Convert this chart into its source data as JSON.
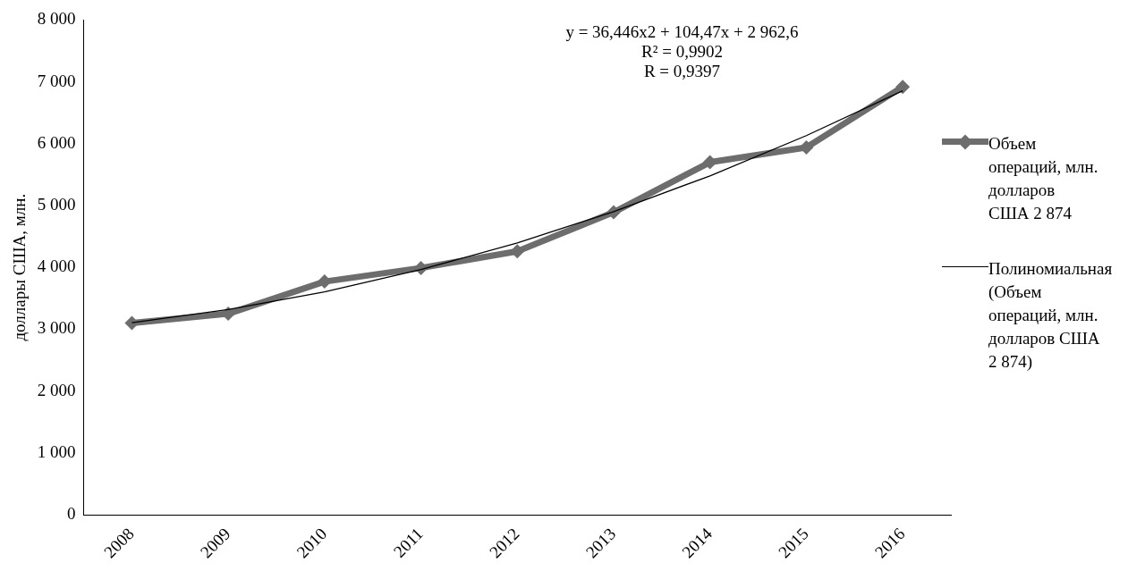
{
  "chart_data": {
    "type": "line",
    "ylabel": "доллары США, млн.",
    "categories": [
      "2008",
      "2009",
      "2010",
      "2011",
      "2012",
      "2013",
      "2014",
      "2015",
      "2016"
    ],
    "series": [
      {
        "name": "Объем операций, млн. долларов США 2 874",
        "color": "#6d6d6d",
        "values": [
          3100,
          3250,
          3770,
          3990,
          4260,
          4890,
          5700,
          5940,
          6920
        ]
      },
      {
        "name": "Полиномиальная (Объем операций, млн. долларов США 2 874)",
        "color": "#000000",
        "type": "line",
        "marker": "none",
        "values": [
          3104,
          3317,
          3604,
          3964,
          4396,
          4902,
          5480,
          6131,
          6855
        ]
      }
    ],
    "ylim": [
      0,
      8000
    ],
    "yticks": [
      {
        "value": 0,
        "label": "0"
      },
      {
        "value": 1000,
        "label": "1 000"
      },
      {
        "value": 2000,
        "label": "2 000"
      },
      {
        "value": 3000,
        "label": "3 000"
      },
      {
        "value": 4000,
        "label": "4 000"
      },
      {
        "value": 5000,
        "label": "5 000"
      },
      {
        "value": 6000,
        "label": "6 000"
      },
      {
        "value": 7000,
        "label": "7 000"
      },
      {
        "value": 8000,
        "label": "8 000"
      }
    ],
    "annotations": [
      "y = 36,446x2 + 104,47x + 2 962,6",
      "R² = 0,9902",
      "R = 0,9397"
    ],
    "marker": "diamond",
    "grid": false,
    "legend": "right"
  }
}
